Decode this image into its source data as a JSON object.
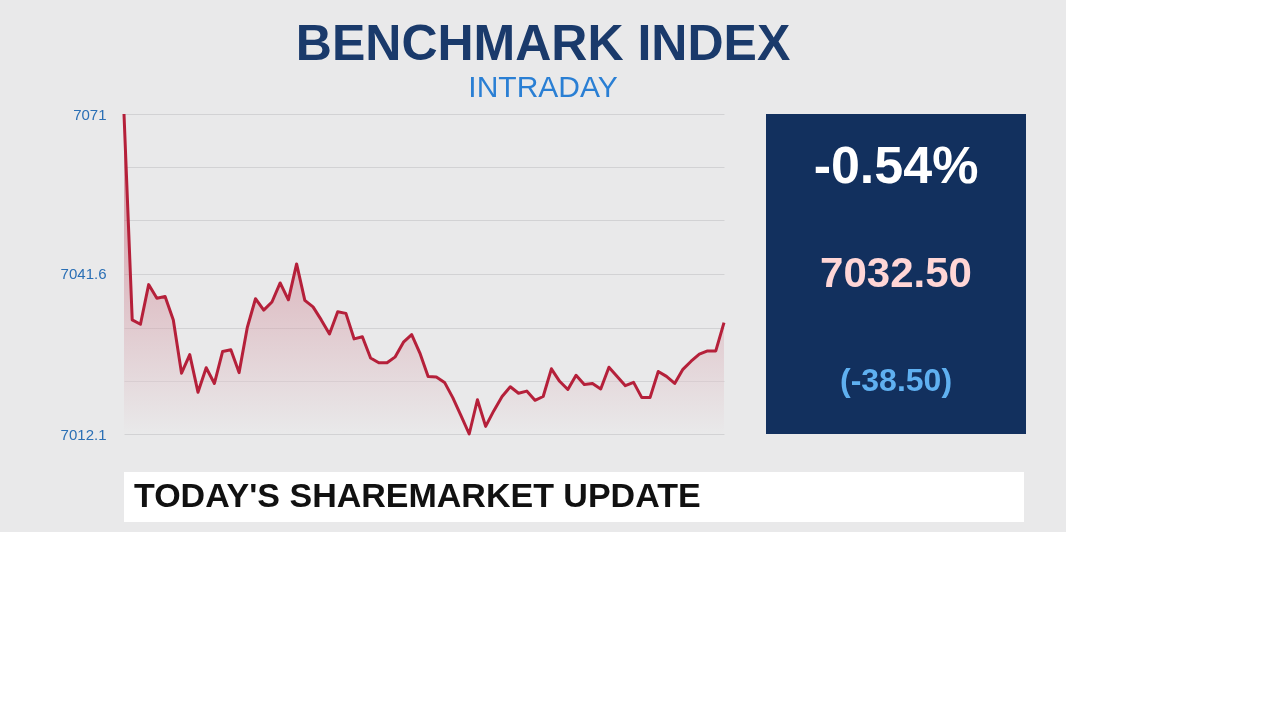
{
  "chart_data": [
    {
      "type": "area",
      "title": "BENCHMARK INDEX",
      "subtitle": "INTRADAY",
      "categories": [
        null,
        null,
        null,
        null,
        null,
        null,
        null,
        null,
        null,
        null,
        null,
        null,
        null,
        null,
        null,
        null,
        null,
        null,
        null,
        null,
        null,
        null,
        null,
        null,
        null,
        null,
        null,
        null,
        null,
        null,
        null,
        null,
        null,
        null,
        null,
        null,
        null,
        null,
        null,
        null,
        null,
        null,
        null,
        null,
        null,
        null,
        null,
        null,
        null,
        null,
        null,
        null,
        null,
        null,
        null,
        null,
        null,
        null,
        null,
        null,
        null,
        null,
        null,
        null,
        null,
        null,
        null,
        null,
        null,
        null,
        null,
        null,
        null,
        null
      ],
      "series": [
        {
          "color": "#b5203a",
          "values": [
            7071,
            7033.1,
            7032.3,
            7039.6,
            7037.1,
            7037.4,
            7033.1,
            7023.3,
            7026.7,
            7019.8,
            7024.3,
            7021.4,
            7027.3,
            7027.6,
            7023.4,
            7031.7,
            7037.0,
            7034.9,
            7036.4,
            7039.9,
            7036.8,
            7043.4,
            7036.7,
            7035.5,
            7033.1,
            7030.5,
            7034.6,
            7034.3,
            7029.6,
            7030.0,
            7026.1,
            7025.2,
            7025.2,
            7026.3,
            7029.0,
            7030.4,
            7027.0,
            7022.7,
            7022.6,
            7021.6,
            7018.8,
            7015.5,
            7012.1,
            7018.4,
            7013.5,
            7016.4,
            7019.0,
            7020.8,
            7019.6,
            7020.0,
            7018.3,
            7019.0,
            7024.1,
            7021.8,
            7020.3,
            7022.9,
            7021.2,
            7021.4,
            7020.4,
            7024.4,
            7022.7,
            7021.0,
            7021.6,
            7018.8,
            7018.8,
            7023.6,
            7022.7,
            7021.4,
            7024.0,
            7025.5,
            7026.8,
            7027.4,
            7027.4,
            7032.6
          ]
        }
      ],
      "ylim": [
        7012.1,
        7071
      ],
      "yticks": [
        7012.1,
        {
          "value": 7021.9,
          "label": null
        },
        {
          "value": 7031.7,
          "label": null
        },
        7041.6,
        {
          "value": 7051.4,
          "label": null
        },
        {
          "value": 7061.2,
          "label": null
        },
        7071
      ],
      "grid": "y",
      "tick_labels": "y",
      "line_style": "solid",
      "annotations": [
        "TODAY'S SHAREMARKET UPDATE"
      ]
    },
    {
      "type": "other",
      "annotations": [
        "-0.54%",
        "7032.50",
        "(-38.50)"
      ]
    }
  ]
}
